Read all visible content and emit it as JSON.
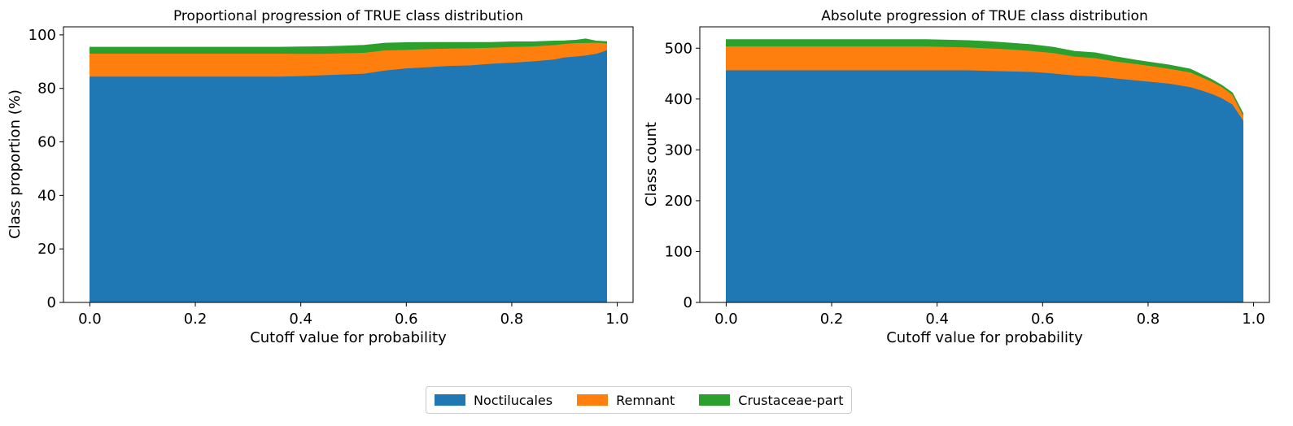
{
  "chart_data": [
    {
      "type": "area",
      "stacked": true,
      "title": "Proportional progression of TRUE class distribution",
      "xlabel": "Cutoff value for probability",
      "ylabel": "Class proportion (%)",
      "xlim": [
        -0.05,
        1.03
      ],
      "ylim": [
        0,
        103
      ],
      "xticks": [
        0.0,
        0.2,
        0.4,
        0.6,
        0.8,
        1.0
      ],
      "xtick_labels": [
        "0.0",
        "0.2",
        "0.4",
        "0.6",
        "0.8",
        "1.0"
      ],
      "yticks": [
        0,
        20,
        40,
        60,
        80,
        100
      ],
      "ytick_labels": [
        "0",
        "20",
        "40",
        "60",
        "80",
        "100"
      ],
      "x": [
        0.0,
        0.1,
        0.2,
        0.3,
        0.36,
        0.4,
        0.44,
        0.48,
        0.52,
        0.56,
        0.6,
        0.64,
        0.68,
        0.72,
        0.76,
        0.8,
        0.84,
        0.88,
        0.9,
        0.92,
        0.94,
        0.96,
        0.98
      ],
      "series": [
        {
          "name": "Noctilucales",
          "values": [
            84.5,
            84.5,
            84.5,
            84.5,
            84.5,
            84.7,
            85.0,
            85.3,
            85.6,
            86.8,
            87.6,
            88.0,
            88.5,
            88.7,
            89.3,
            89.7,
            90.2,
            90.9,
            91.7,
            92.0,
            92.4,
            93.0,
            94.3
          ]
        },
        {
          "name": "Remnant",
          "values": [
            8.6,
            8.6,
            8.6,
            8.6,
            8.6,
            8.3,
            8.0,
            7.9,
            7.8,
            7.5,
            6.9,
            6.8,
            6.5,
            6.4,
            6.0,
            5.9,
            5.6,
            5.4,
            5.0,
            5.0,
            4.7,
            4.2,
            2.6
          ]
        },
        {
          "name": "Crustaceae-part",
          "values": [
            2.3,
            2.3,
            2.3,
            2.3,
            2.3,
            2.5,
            2.6,
            2.6,
            2.7,
            2.6,
            2.6,
            2.4,
            2.2,
            2.1,
            1.9,
            1.8,
            1.6,
            1.4,
            1.1,
            1.0,
            1.4,
            0.5,
            0.6
          ]
        }
      ]
    },
    {
      "type": "area",
      "stacked": true,
      "title": "Absolute progression of TRUE class distribution",
      "xlabel": "Cutoff value for probability",
      "ylabel": "Class count",
      "xlim": [
        -0.05,
        1.03
      ],
      "ylim": [
        0,
        542
      ],
      "xticks": [
        0.0,
        0.2,
        0.4,
        0.6,
        0.8,
        1.0
      ],
      "xtick_labels": [
        "0.0",
        "0.2",
        "0.4",
        "0.6",
        "0.8",
        "1.0"
      ],
      "yticks": [
        0,
        100,
        200,
        300,
        400,
        500
      ],
      "ytick_labels": [
        "0",
        "100",
        "200",
        "300",
        "400",
        "500"
      ],
      "x": [
        0.0,
        0.1,
        0.2,
        0.3,
        0.38,
        0.42,
        0.46,
        0.5,
        0.54,
        0.58,
        0.62,
        0.66,
        0.7,
        0.74,
        0.78,
        0.8,
        0.84,
        0.88,
        0.9,
        0.92,
        0.94,
        0.96,
        0.98
      ],
      "series": [
        {
          "name": "Noctilucales",
          "values": [
            457,
            457,
            457,
            457,
            457,
            457,
            457,
            456,
            455,
            454,
            451,
            447,
            445,
            441,
            437,
            435,
            431,
            424,
            418,
            411,
            402,
            390,
            359
          ]
        },
        {
          "name": "Remnant",
          "values": [
            47,
            47,
            47,
            47,
            47,
            46,
            45,
            44,
            43,
            41,
            40,
            37,
            36,
            33,
            32,
            31,
            29,
            29,
            26,
            24,
            22,
            19,
            10
          ]
        },
        {
          "name": "Crustaceae-part",
          "values": [
            13,
            13,
            13,
            13,
            13,
            13,
            13,
            13,
            12,
            12,
            11,
            10,
            10,
            9,
            7,
            7,
            7,
            6,
            5,
            4,
            3,
            3,
            3
          ]
        }
      ]
    }
  ],
  "legend": {
    "items": [
      {
        "label": "Noctilucales",
        "color": "#1f77b4"
      },
      {
        "label": "Remnant",
        "color": "#ff7f0e"
      },
      {
        "label": "Crustaceae-part",
        "color": "#2ca02c"
      }
    ]
  }
}
